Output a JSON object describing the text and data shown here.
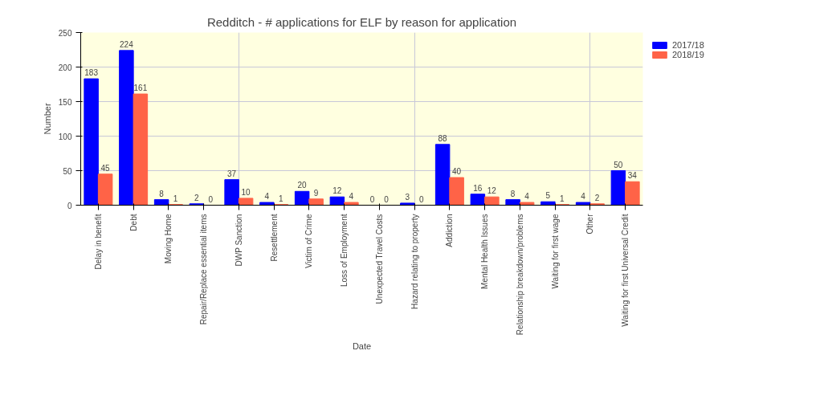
{
  "chart_data": {
    "type": "bar",
    "title": "Redditch - # applications for ELF by reason for application",
    "xlabel": "Date",
    "ylabel": "Number",
    "categories": [
      "Delay in benefit",
      "Debt",
      "Moving Home",
      "Repair/Replace essential items",
      "DWP Sanction",
      "Resettlement",
      "Victim of Crime",
      "Loss of Employment",
      "Unexpected Travel Costs",
      "Hazard relating to property",
      "Addiction",
      "Mental Health Issues",
      "Relationship breakdown/problems",
      "Waiting for first wage",
      "Other",
      "Waiting for first Universal Credit"
    ],
    "series": [
      {
        "name": "2017/18",
        "color": "#0000ff",
        "values": [
          183,
          224,
          8,
          2,
          37,
          4,
          20,
          12,
          0,
          3,
          88,
          16,
          8,
          5,
          4,
          50
        ]
      },
      {
        "name": "2018/19",
        "color": "#ff6347",
        "values": [
          45,
          161,
          1,
          0,
          10,
          1,
          9,
          4,
          0,
          0,
          40,
          12,
          4,
          1,
          2,
          34
        ]
      }
    ],
    "ylim": [
      0,
      250
    ],
    "yticks": [
      0,
      50,
      100,
      150,
      200,
      250
    ],
    "grid": true,
    "legend": "top right",
    "data_labels": true
  }
}
